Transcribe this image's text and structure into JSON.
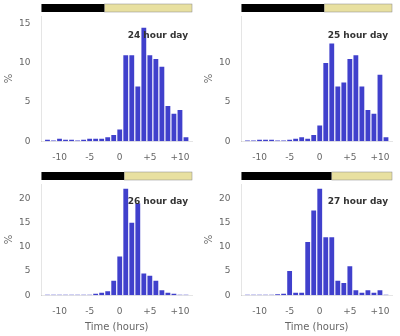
{
  "chart_data": [
    {
      "type": "bar",
      "annotation": "24 hour day",
      "dark_fraction": 0.42,
      "x": [
        -12,
        -11,
        -10,
        -9,
        -8,
        -7,
        -6,
        -5,
        -4,
        -3,
        -2,
        -1,
        0,
        1,
        2,
        3,
        4,
        5,
        6,
        7,
        8,
        9,
        10,
        11
      ],
      "values": [
        0.2,
        0.1,
        0.3,
        0.2,
        0.2,
        0.1,
        0.2,
        0.3,
        0.3,
        0.3,
        0.5,
        0.8,
        1.5,
        11.0,
        11.0,
        7.0,
        14.5,
        11.0,
        10.5,
        9.5,
        4.5,
        3.5,
        4.0,
        0.5
      ],
      "color": "#4040cc",
      "ylabel": "%",
      "xlim": [
        -13,
        12
      ],
      "xticks": [
        -10,
        -5,
        0,
        {
          "value": 5,
          "label": "+5"
        },
        {
          "value": 10,
          "label": "+10"
        }
      ],
      "ylim": [
        0,
        16
      ],
      "yticks": [
        0,
        5,
        10,
        15
      ],
      "grid": false
    },
    {
      "type": "bar",
      "annotation": "25 hour day",
      "dark_fraction": 0.55,
      "x": [
        -12,
        -11,
        -10,
        -9,
        -8,
        -7,
        -6,
        -5,
        -4,
        -3,
        -2,
        -1,
        0,
        1,
        2,
        3,
        4,
        5,
        6,
        7,
        8,
        9,
        10,
        11
      ],
      "values": [
        0.1,
        0.1,
        0.2,
        0.2,
        0.2,
        0.1,
        0.1,
        0.2,
        0.3,
        0.5,
        0.3,
        0.8,
        2.0,
        10.0,
        12.5,
        7.0,
        7.5,
        10.5,
        11.0,
        7.0,
        4.0,
        3.5,
        8.5,
        0.5
      ],
      "color": "#4040cc",
      "ylabel": "%",
      "xlim": [
        -13,
        12
      ],
      "xticks": [
        -10,
        -5,
        0,
        {
          "value": 5,
          "label": "+5"
        },
        {
          "value": 10,
          "label": "+10"
        }
      ],
      "ylim": [
        0,
        16
      ],
      "yticks": [
        0,
        5,
        10
      ],
      "grid": false
    },
    {
      "type": "bar",
      "annotation": "26 hour day",
      "dark_fraction": 0.55,
      "x": [
        -12,
        -11,
        -10,
        -9,
        -8,
        -7,
        -6,
        -5,
        -4,
        -3,
        -2,
        -1,
        0,
        1,
        2,
        3,
        4,
        5,
        6,
        7,
        8,
        9,
        10,
        11
      ],
      "values": [
        0.1,
        0.1,
        0.1,
        0.1,
        0.1,
        0.1,
        0.1,
        0.1,
        0.3,
        0.5,
        0.8,
        3.0,
        8.0,
        22.0,
        15.0,
        19.0,
        4.5,
        4.0,
        3.0,
        1.0,
        0.5,
        0.3,
        0.1,
        0.1
      ],
      "color": "#4040cc",
      "ylabel": "%",
      "xlabel": "Time (hours)",
      "xlim": [
        -13,
        12
      ],
      "xticks": [
        -10,
        -5,
        0,
        {
          "value": 5,
          "label": "+5"
        },
        {
          "value": 10,
          "label": "+10"
        }
      ],
      "ylim": [
        0,
        23
      ],
      "yticks": [
        0,
        5,
        10,
        15,
        20
      ],
      "grid": false
    },
    {
      "type": "bar",
      "annotation": "27 hour day",
      "dark_fraction": 0.6,
      "x": [
        -12,
        -11,
        -10,
        -9,
        -8,
        -7,
        -6,
        -5,
        -4,
        -3,
        -2,
        -1,
        0,
        1,
        2,
        3,
        4,
        5,
        6,
        7,
        8,
        9,
        10,
        11
      ],
      "values": [
        0.1,
        0.1,
        0.1,
        0.1,
        0.1,
        0.2,
        0.3,
        5.0,
        0.5,
        0.5,
        11.0,
        17.5,
        22.0,
        12.0,
        12.0,
        3.0,
        2.5,
        6.0,
        1.0,
        0.5,
        1.0,
        0.5,
        1.0,
        0.1
      ],
      "color": "#4040cc",
      "ylabel": "%",
      "xlabel": "Time (hours)",
      "xlim": [
        -13,
        12
      ],
      "xticks": [
        -10,
        -5,
        0,
        {
          "value": 5,
          "label": "+5"
        },
        {
          "value": 10,
          "label": "+10"
        }
      ],
      "ylim": [
        0,
        23
      ],
      "yticks": [
        0,
        5,
        10,
        15,
        20
      ],
      "grid": false
    }
  ]
}
